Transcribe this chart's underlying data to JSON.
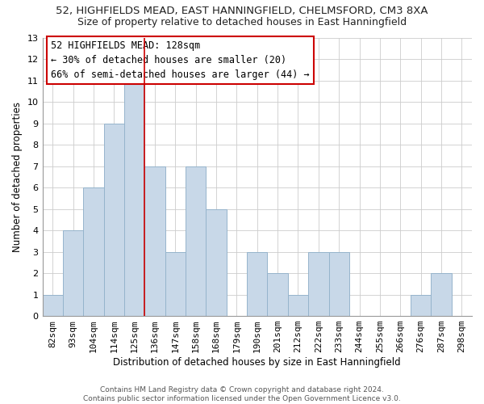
{
  "title_line1": "52, HIGHFIELDS MEAD, EAST HANNINGFIELD, CHELMSFORD, CM3 8XA",
  "title_line2": "Size of property relative to detached houses in East Hanningfield",
  "xlabel": "Distribution of detached houses by size in East Hanningfield",
  "ylabel": "Number of detached properties",
  "bin_labels": [
    "82sqm",
    "93sqm",
    "104sqm",
    "114sqm",
    "125sqm",
    "136sqm",
    "147sqm",
    "158sqm",
    "168sqm",
    "179sqm",
    "190sqm",
    "201sqm",
    "212sqm",
    "222sqm",
    "233sqm",
    "244sqm",
    "255sqm",
    "266sqm",
    "276sqm",
    "287sqm",
    "298sqm"
  ],
  "bar_heights": [
    1,
    4,
    6,
    9,
    11,
    7,
    3,
    7,
    5,
    0,
    3,
    2,
    1,
    3,
    3,
    0,
    0,
    0,
    1,
    2,
    0
  ],
  "bar_color": "#c8d8e8",
  "bar_edge_color": "#96b4cc",
  "highlight_line_index": 4,
  "highlight_line_color": "#cc0000",
  "ylim": [
    0,
    13
  ],
  "yticks": [
    0,
    1,
    2,
    3,
    4,
    5,
    6,
    7,
    8,
    9,
    10,
    11,
    12,
    13
  ],
  "annotation_title": "52 HIGHFIELDS MEAD: 128sqm",
  "annotation_line2": "← 30% of detached houses are smaller (20)",
  "annotation_line3": "66% of semi-detached houses are larger (44) →",
  "annotation_box_color": "#ffffff",
  "annotation_box_edge": "#cc0000",
  "footer_line1": "Contains HM Land Registry data © Crown copyright and database right 2024.",
  "footer_line2": "Contains public sector information licensed under the Open Government Licence v3.0.",
  "background_color": "#ffffff",
  "grid_color": "#cccccc",
  "title1_fontsize": 9.5,
  "title2_fontsize": 9,
  "ylabel_fontsize": 8.5,
  "xlabel_fontsize": 8.5,
  "tick_fontsize": 8,
  "annot_fontsize": 8.5,
  "footer_fontsize": 6.5
}
